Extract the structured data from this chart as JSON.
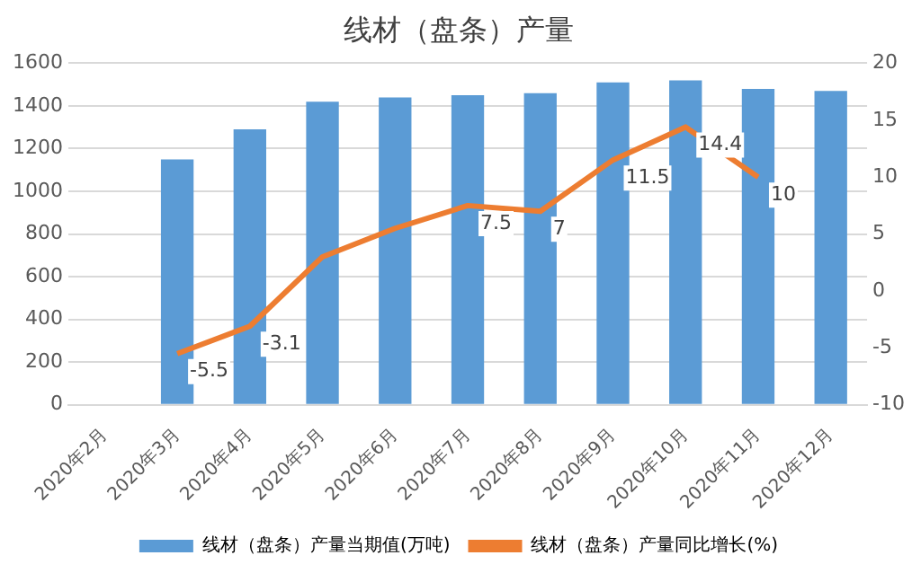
{
  "chart_data": {
    "type": "bar",
    "title": "线材（盘条）产量",
    "categories": [
      "2020年2月",
      "2020年3月",
      "2020年4月",
      "2020年5月",
      "2020年6月",
      "2020年7月",
      "2020年8月",
      "2020年9月",
      "2020年10月",
      "2020年11月",
      "2020年12月"
    ],
    "series": [
      {
        "name": "线材（盘条）产量当期值(万吨)",
        "color": "#5b9bd5",
        "values": [
          null,
          1150,
          1290,
          1420,
          1440,
          1450,
          1460,
          1510,
          1520,
          1480,
          1470
        ]
      },
      {
        "name": "线材（盘条）产量同比增长(%)",
        "type": "line",
        "axis": "y2",
        "color": "#ed7d31",
        "values": [
          null,
          -5.5,
          -3.1,
          3,
          5.5,
          7.5,
          7,
          11.5,
          14.4,
          10,
          null
        ],
        "value_labels": [
          null,
          "-5.5",
          "-3.1",
          null,
          null,
          "7.5",
          "7",
          "11.5",
          "14.4",
          "10",
          null
        ]
      }
    ],
    "ylim": [
      0,
      1600
    ],
    "yticks": [
      0,
      200,
      400,
      600,
      800,
      1000,
      1200,
      1400,
      1600
    ],
    "y2lim": [
      -10,
      20
    ],
    "y2ticks": [
      -10,
      -5,
      0,
      5,
      10,
      15,
      20
    ],
    "grid": "y",
    "legend": "bottom",
    "marker": "none"
  }
}
